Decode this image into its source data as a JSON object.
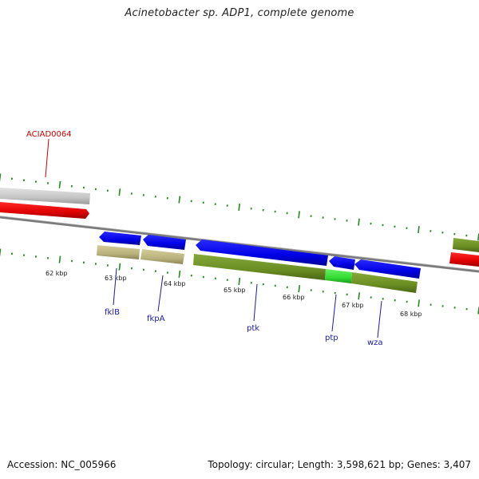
{
  "title": "Acinetobacter sp. ADP1, complete genome",
  "footer": {
    "accession": "Accession: NC_005966",
    "summary": "Topology: circular; Length: 3,598,621 bp; Genes: 3,407"
  },
  "scale_labels": [
    "62 kbp",
    "63 kbp",
    "64 kbp",
    "65 kbp",
    "66 kbp",
    "67 kbp",
    "68 kbp"
  ],
  "gene_labels": [
    {
      "text": "ACIAD0064",
      "color": "#cc0000"
    },
    {
      "text": "fklB",
      "color": "#1a1aaa"
    },
    {
      "text": "fkpA",
      "color": "#1a1aaa"
    },
    {
      "text": "ptk",
      "color": "#1a1aaa"
    },
    {
      "text": "ptp",
      "color": "#1a1aaa"
    },
    {
      "text": "wza",
      "color": "#1a1aaa"
    }
  ],
  "colors": {
    "tick": "#228b22",
    "backbone": "#808080",
    "gene_blue": "#0000ee",
    "gene_red": "#ee0000",
    "gene_grey": "#c8c8c8",
    "category_tan": "#bdb680",
    "category_olive": "#6b8e23",
    "category_green": "#33dd33"
  }
}
